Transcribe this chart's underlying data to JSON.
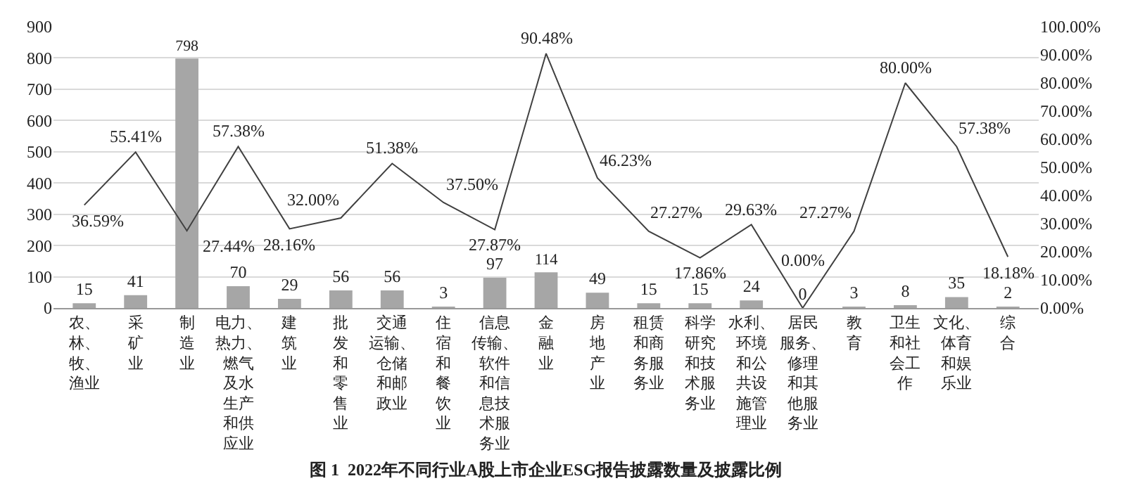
{
  "chart_data": {
    "type": "bar",
    "title": "图 1  2022年不同行业A股上市企业ESG报告披露数量及披露比例",
    "categories": [
      "农、林、牧、渔业",
      "采矿业",
      "制造业",
      "电力、热力、燃气及水生产和供应业",
      "建筑业",
      "批发和零售业",
      "交通运输、仓储和邮政业",
      "住宿和餐饮业",
      "信息传输、软件和信息技术服务业",
      "金融业",
      "房地产业",
      "租赁和商务服务业",
      "科学研究和技术服务业",
      "水利、环境和公共设施管理业",
      "居民服务、修理和其他服务业",
      "教育",
      "卫生和社会工作",
      "文化、体育和娱乐业",
      "综合"
    ],
    "series": [
      {
        "color": "#a6a6a6",
        "values": [
          15,
          41,
          798,
          70,
          29,
          56,
          56,
          3,
          97,
          114,
          49,
          15,
          15,
          24,
          0,
          3,
          8,
          35,
          2
        ]
      },
      {
        "type": "line",
        "axis": "y2",
        "color": "#404040",
        "values": [
          36.59,
          55.41,
          27.44,
          57.38,
          28.16,
          32.0,
          51.38,
          37.5,
          27.87,
          90.48,
          46.23,
          27.27,
          17.86,
          29.63,
          0.0,
          27.27,
          80.0,
          57.38,
          18.18
        ],
        "value_labels": [
          "36.59%",
          "55.41%",
          "27.44%",
          "57.38%",
          "28.16%",
          "32.00%",
          "51.38%",
          "37.50%",
          "27.87%",
          "90.48%",
          "46.23%",
          "27.27%",
          "17.86%",
          "29.63%",
          "0.00%",
          "27.27%",
          "80.00%",
          "57.38%",
          "18.18%"
        ]
      }
    ],
    "data_labels": true,
    "ylim": [
      0,
      900
    ],
    "yticks": [
      0,
      100,
      200,
      300,
      400,
      500,
      600,
      700,
      800,
      900
    ],
    "y2lim": [
      0,
      100
    ],
    "y2ticks": [
      {
        "value": 0,
        "label": "0.00%"
      },
      {
        "value": 10,
        "label": "10.00%"
      },
      {
        "value": 20,
        "label": "20.00%"
      },
      {
        "value": 30,
        "label": "30.00%"
      },
      {
        "value": 40,
        "label": "40.00%"
      },
      {
        "value": 50,
        "label": "50.00%"
      },
      {
        "value": 60,
        "label": "60.00%"
      },
      {
        "value": 70,
        "label": "70.00%"
      },
      {
        "value": 80,
        "label": "80.00%"
      },
      {
        "value": 90,
        "label": "90.00%"
      },
      {
        "value": 100,
        "label": "100.00%"
      }
    ],
    "grid": "y",
    "legend": false,
    "marker": "none",
    "line_style": "solid"
  }
}
